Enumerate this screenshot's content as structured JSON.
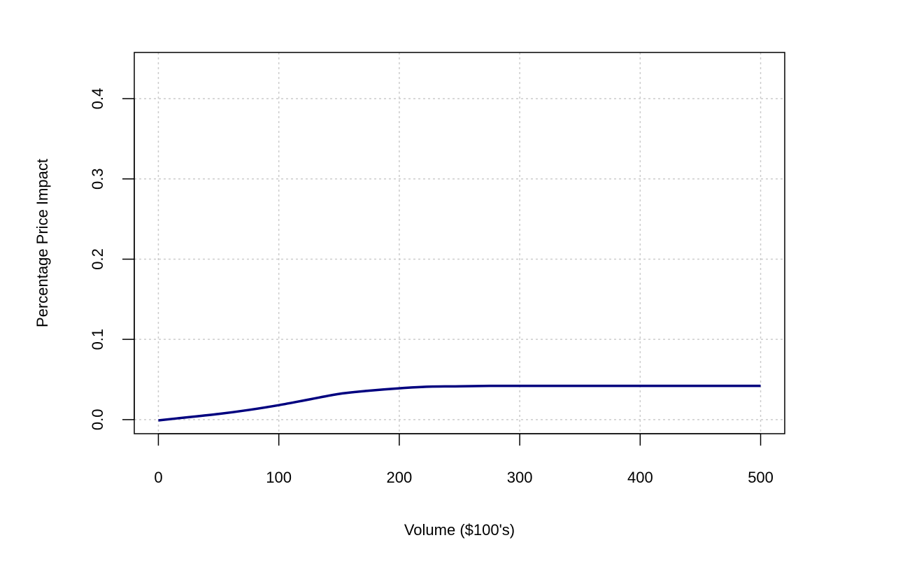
{
  "chart_data": {
    "type": "line",
    "title": "",
    "xlabel": "Volume ($100's)",
    "ylabel": "Percentage Price Impact",
    "xlim": [
      -20,
      520
    ],
    "ylim": [
      -0.0176,
      0.4576
    ],
    "xticks": [
      0,
      100,
      200,
      300,
      400,
      500
    ],
    "yticks": [
      0.0,
      0.1,
      0.2,
      0.3,
      0.4
    ],
    "x_tick_labels": [
      "0",
      "100",
      "200",
      "300",
      "400",
      "500"
    ],
    "y_tick_labels": [
      "0.0",
      "0.1",
      "0.2",
      "0.3",
      "0.4"
    ],
    "grid": true,
    "series": [
      {
        "color": "#00007f",
        "x": [
          0,
          25,
          50,
          75,
          100,
          125,
          150,
          175,
          200,
          225,
          250,
          275,
          300,
          350,
          400,
          450,
          500
        ],
        "y": [
          -0.001,
          0.003,
          0.007,
          0.012,
          0.018,
          0.025,
          0.032,
          0.036,
          0.039,
          0.041,
          0.0415,
          0.042,
          0.042,
          0.042,
          0.042,
          0.042,
          0.042
        ]
      }
    ]
  }
}
